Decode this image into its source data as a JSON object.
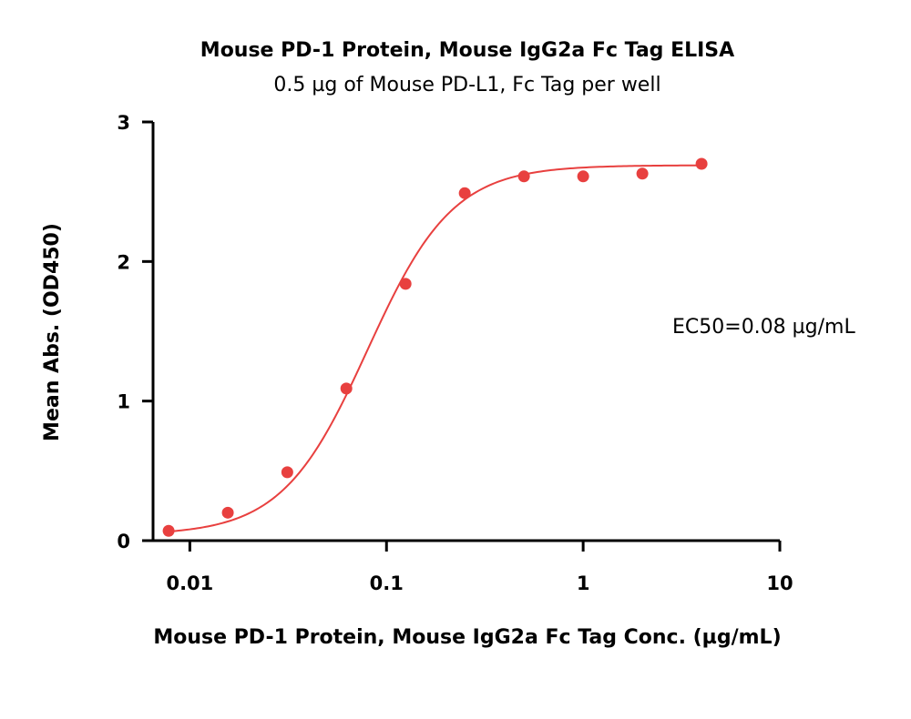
{
  "chart_data": {
    "type": "scatter",
    "title": "Mouse PD-1 Protein, Mouse IgG2a Fc Tag ELISA",
    "subtitle": "0.5 µg of Mouse PD-L1, Fc Tag per well",
    "xlabel": "Mouse PD-1 Protein, Mouse IgG2a Fc Tag Conc. (µg/mL)",
    "ylabel": "Mean Abs. (OD450)",
    "x_scale": "log",
    "xlim": [
      0.0065,
      10
    ],
    "ylim": [
      0,
      3
    ],
    "x_ticks": [
      0.01,
      0.1,
      1,
      10
    ],
    "x_tick_labels": [
      "0.01",
      "0.1",
      "1",
      "10"
    ],
    "y_ticks": [
      0,
      1,
      2,
      3
    ],
    "y_tick_labels": [
      "0",
      "1",
      "2",
      "3"
    ],
    "grid": false,
    "color": "#e8403f",
    "series": [
      {
        "x": [
          0.0078,
          0.0156,
          0.0313,
          0.0625,
          0.125,
          0.25,
          0.5,
          1,
          2,
          4
        ],
        "y": [
          0.07,
          0.2,
          0.49,
          1.09,
          1.84,
          2.49,
          2.61,
          2.61,
          2.63,
          2.7
        ]
      }
    ],
    "fit": {
      "model": "4PL",
      "bottom": 0.04,
      "top": 2.69,
      "ec50": 0.08,
      "hill": 2.0,
      "x_range": [
        0.0075,
        4
      ]
    },
    "annotation": "EC50=0.08 µg/mL"
  }
}
